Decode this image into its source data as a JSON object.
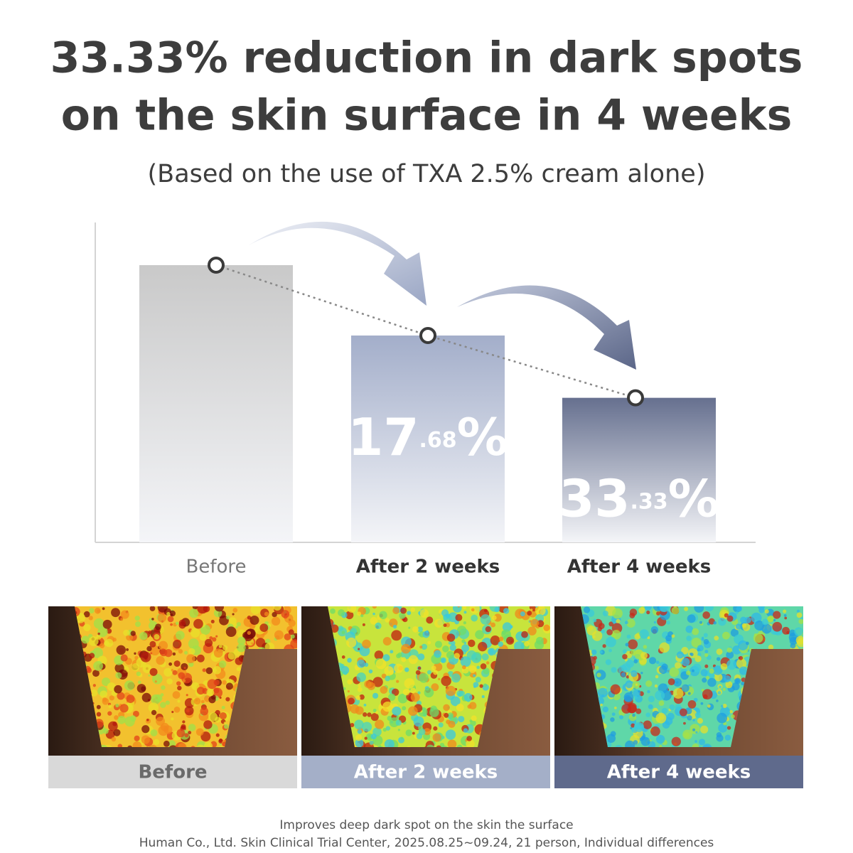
{
  "header": {
    "title_lines": [
      "33.33% reduction in dark spots",
      "on the skin surface in 4 weeks"
    ],
    "subtitle": "(Based on the use of TXA 2.5% cream alone)"
  },
  "chart_data": {
    "type": "bar",
    "categories": [
      "Before",
      "After 2 weeks",
      "After 4 weeks"
    ],
    "values": [
      0,
      17.68,
      33.33
    ],
    "value_labels": [
      null,
      "17.68%",
      "33.33%"
    ],
    "colors": [
      "#c9c9c9",
      "#a3aeca",
      "#66708f"
    ]
  },
  "footnotes": [
    "Improves deep  dark spot on the skin  the surface",
    "Human Co., Ltd. Skin Clinical Trial Center, 2025.08.25~09.24, 21 person, Individual differences"
  ]
}
